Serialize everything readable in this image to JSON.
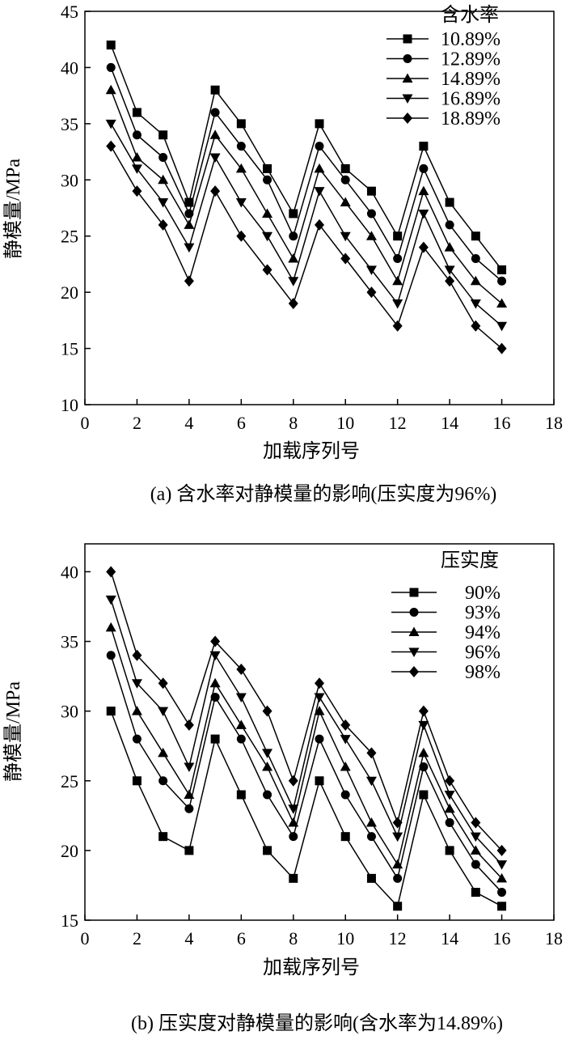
{
  "chart_data": [
    {
      "type": "line",
      "caption": "(a) 含水率对静模量的影响(压实度为96%)",
      "xlabel": "加载序列号",
      "ylabel": "静模量/MPa",
      "xlim": [
        0,
        18
      ],
      "ylim": [
        10,
        45
      ],
      "xticks": [
        0,
        2,
        4,
        6,
        8,
        10,
        12,
        14,
        16,
        18
      ],
      "yticks": [
        10,
        15,
        20,
        25,
        30,
        35,
        40,
        45
      ],
      "legend_title": "含水率",
      "legend_position": "top-right",
      "x": [
        1,
        2,
        3,
        4,
        5,
        6,
        7,
        8,
        9,
        10,
        11,
        12,
        13,
        14,
        15,
        16
      ],
      "series": [
        {
          "name": "10.89%",
          "marker": "square",
          "values": [
            42,
            36,
            34,
            28,
            38,
            35,
            31,
            27,
            35,
            31,
            29,
            25,
            33,
            28,
            25,
            22
          ]
        },
        {
          "name": "12.89%",
          "marker": "circle",
          "values": [
            40,
            34,
            32,
            27,
            36,
            33,
            30,
            25,
            33,
            30,
            27,
            23,
            31,
            26,
            23,
            21
          ]
        },
        {
          "name": "14.89%",
          "marker": "triangle-up",
          "values": [
            38,
            32,
            30,
            26,
            34,
            31,
            27,
            23,
            31,
            28,
            25,
            21,
            29,
            24,
            21,
            19
          ]
        },
        {
          "name": "16.89%",
          "marker": "triangle-down",
          "values": [
            35,
            31,
            28,
            24,
            32,
            28,
            25,
            21,
            29,
            25,
            22,
            19,
            27,
            22,
            19,
            17
          ]
        },
        {
          "name": "18.89%",
          "marker": "diamond",
          "values": [
            33,
            29,
            26,
            21,
            29,
            25,
            22,
            19,
            26,
            23,
            20,
            17,
            24,
            21,
            17,
            15
          ]
        }
      ]
    },
    {
      "type": "line",
      "caption": "(b) 压实度对静模量的影响(含水率为14.89%)",
      "xlabel": "加载序列号",
      "ylabel": "静模量/MPa",
      "xlim": [
        0,
        18
      ],
      "ylim": [
        15,
        42
      ],
      "xticks": [
        0,
        2,
        4,
        6,
        8,
        10,
        12,
        14,
        16,
        18
      ],
      "yticks": [
        15,
        20,
        25,
        30,
        35,
        40
      ],
      "legend_title": "压实度",
      "legend_position": "top-right",
      "x": [
        1,
        2,
        3,
        4,
        5,
        6,
        7,
        8,
        9,
        10,
        11,
        12,
        13,
        14,
        15,
        16
      ],
      "series": [
        {
          "name": "90%",
          "marker": "square",
          "values": [
            30,
            25,
            21,
            20,
            28,
            24,
            20,
            18,
            25,
            21,
            18,
            16,
            24,
            20,
            17,
            16
          ]
        },
        {
          "name": "93%",
          "marker": "circle",
          "values": [
            34,
            28,
            25,
            23,
            31,
            28,
            24,
            21,
            28,
            24,
            21,
            18,
            26,
            22,
            19,
            17
          ]
        },
        {
          "name": "94%",
          "marker": "triangle-up",
          "values": [
            36,
            30,
            27,
            24,
            32,
            29,
            26,
            22,
            30,
            26,
            22,
            19,
            27,
            23,
            20,
            18
          ]
        },
        {
          "name": "96%",
          "marker": "triangle-down",
          "values": [
            38,
            32,
            30,
            26,
            34,
            31,
            27,
            23,
            31,
            28,
            25,
            21,
            29,
            24,
            21,
            19
          ]
        },
        {
          "name": "98%",
          "marker": "diamond",
          "values": [
            40,
            34,
            32,
            29,
            35,
            33,
            30,
            25,
            32,
            29,
            27,
            22,
            30,
            25,
            22,
            20
          ]
        }
      ]
    }
  ]
}
